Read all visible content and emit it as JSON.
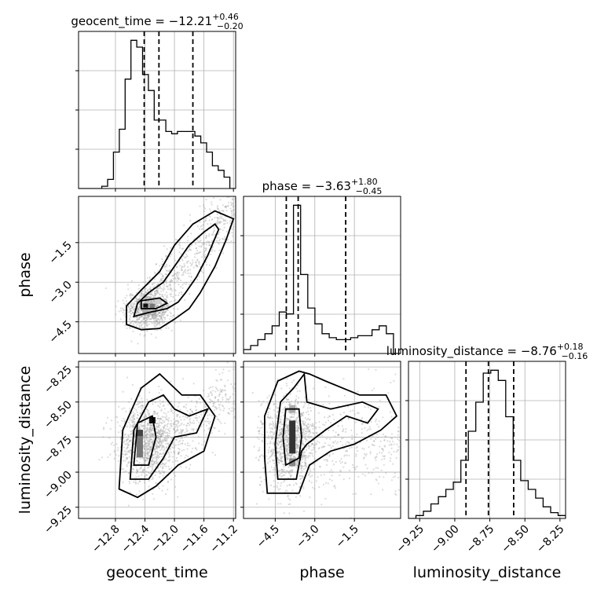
{
  "chart_data": {
    "type": "corner",
    "parameters": [
      "geocent_time",
      "phase",
      "luminosity_distance"
    ],
    "titles": [
      {
        "param": "geocent_time",
        "median": "−12.21",
        "plus": "+0.46",
        "minus": "−0.20"
      },
      {
        "param": "phase",
        "median": "−3.63",
        "plus": "+1.80",
        "minus": "−0.45"
      },
      {
        "param": "luminosity_distance",
        "median": "−8.76",
        "plus": "+0.18",
        "minus": "−0.16"
      }
    ],
    "ranges": {
      "geocent_time": [
        -13.3,
        -11.17
      ],
      "phase": [
        -5.7,
        0.25
      ],
      "luminosity_distance": [
        -9.33,
        -8.21
      ]
    },
    "ticks": {
      "geocent_time": {
        "values": [
          -12.8,
          -12.4,
          -12.0,
          -11.6,
          -11.2
        ],
        "labels": [
          "−12.8",
          "−12.4",
          "−12.0",
          "−11.6",
          "−11.2"
        ]
      },
      "phase": {
        "values": [
          -4.5,
          -3.0,
          -1.5
        ],
        "labels": [
          "−4.5",
          "−3.0",
          "−1.5"
        ]
      },
      "luminosity_distance": {
        "values": [
          -9.25,
          -9.0,
          -8.75,
          -8.5,
          -8.25
        ],
        "labels": [
          "−9.25",
          "−9.00",
          "−8.75",
          "−8.50",
          "−8.25"
        ]
      }
    },
    "quantiles": {
      "geocent_time": [
        -12.41,
        -12.21,
        -11.75
      ],
      "phase": [
        -4.08,
        -3.63,
        -1.83
      ],
      "luminosity_distance": [
        -8.92,
        -8.76,
        -8.58
      ]
    },
    "histograms": {
      "geocent_time": [
        0,
        0,
        0,
        0,
        1,
        4,
        16,
        26,
        48,
        65,
        62,
        50,
        43,
        30,
        30,
        25,
        24,
        25,
        25,
        25,
        23,
        20,
        16,
        10,
        8,
        5,
        0
      ],
      "phase": [
        2,
        4,
        7,
        10,
        14,
        21,
        20,
        75,
        40,
        23,
        15,
        10,
        8,
        7,
        7,
        8,
        9,
        9,
        12,
        14,
        10,
        0
      ],
      "luminosity_distance": [
        0,
        2,
        5,
        10,
        15,
        20,
        25,
        40,
        60,
        80,
        100,
        102,
        95,
        70,
        40,
        26,
        20,
        14,
        8,
        4,
        2
      ]
    },
    "grid": true
  }
}
